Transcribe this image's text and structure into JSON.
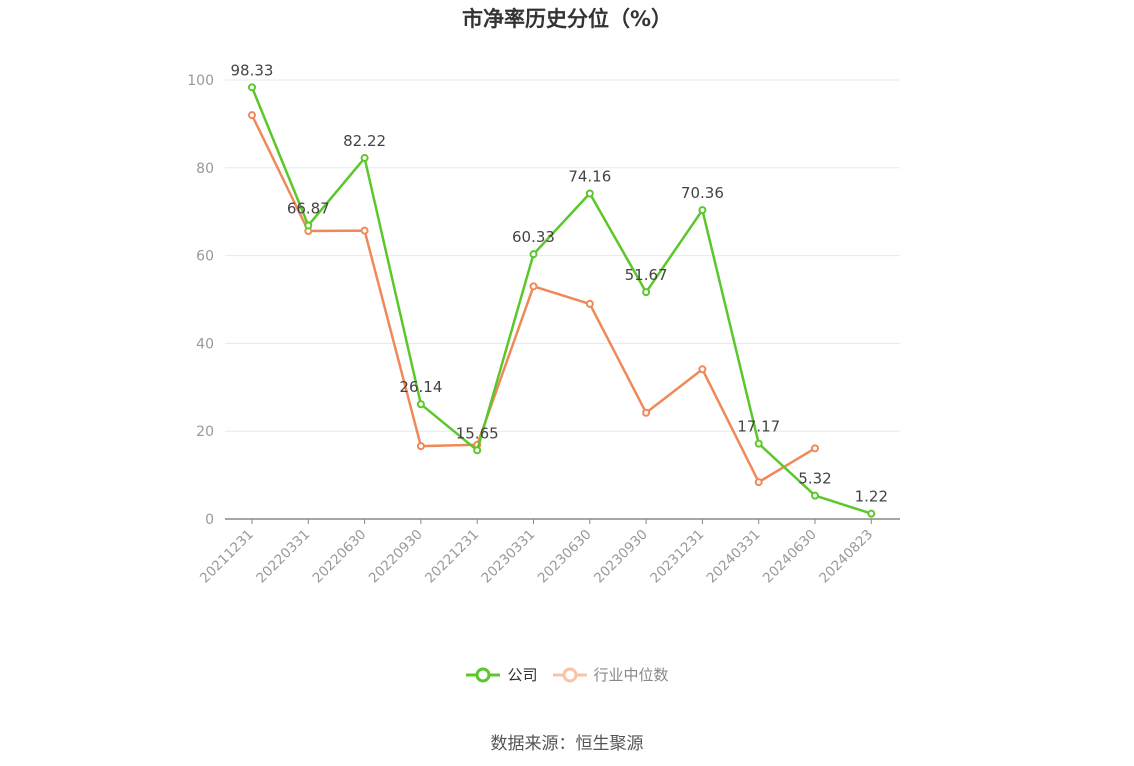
{
  "chart_data": {
    "type": "line",
    "title": "市净率历史分位（%）",
    "categories": [
      "20211231",
      "20220331",
      "20220630",
      "20220930",
      "20221231",
      "20230331",
      "20230630",
      "20230930",
      "20231231",
      "20240331",
      "20240630",
      "20240823"
    ],
    "series": [
      {
        "name": "公司",
        "color": "#5cc72a",
        "values": [
          98.33,
          66.87,
          82.22,
          26.14,
          15.65,
          60.33,
          74.16,
          51.67,
          70.36,
          17.17,
          5.32,
          1.22
        ],
        "data_labels": [
          "98.33",
          "66.87",
          "82.22",
          "26.14",
          "15.65",
          "60.33",
          "74.16",
          "51.67",
          "70.36",
          "17.17",
          "5.32",
          "1.22"
        ]
      },
      {
        "name": "行业中位数",
        "color": "#f0895a",
        "values": [
          92,
          65.6,
          65.7,
          16.6,
          16.9,
          53,
          49,
          24.2,
          34.1,
          8.4,
          16.1,
          null
        ]
      }
    ],
    "ylim": [
      0,
      100
    ],
    "yticks": [
      "0",
      "20",
      "40",
      "60",
      "80",
      "100"
    ],
    "grid": true,
    "legend_position": "bottom"
  },
  "legend": {
    "company_label": "公司",
    "industry_label": "行业中位数"
  },
  "source": "数据来源：恒生聚源"
}
